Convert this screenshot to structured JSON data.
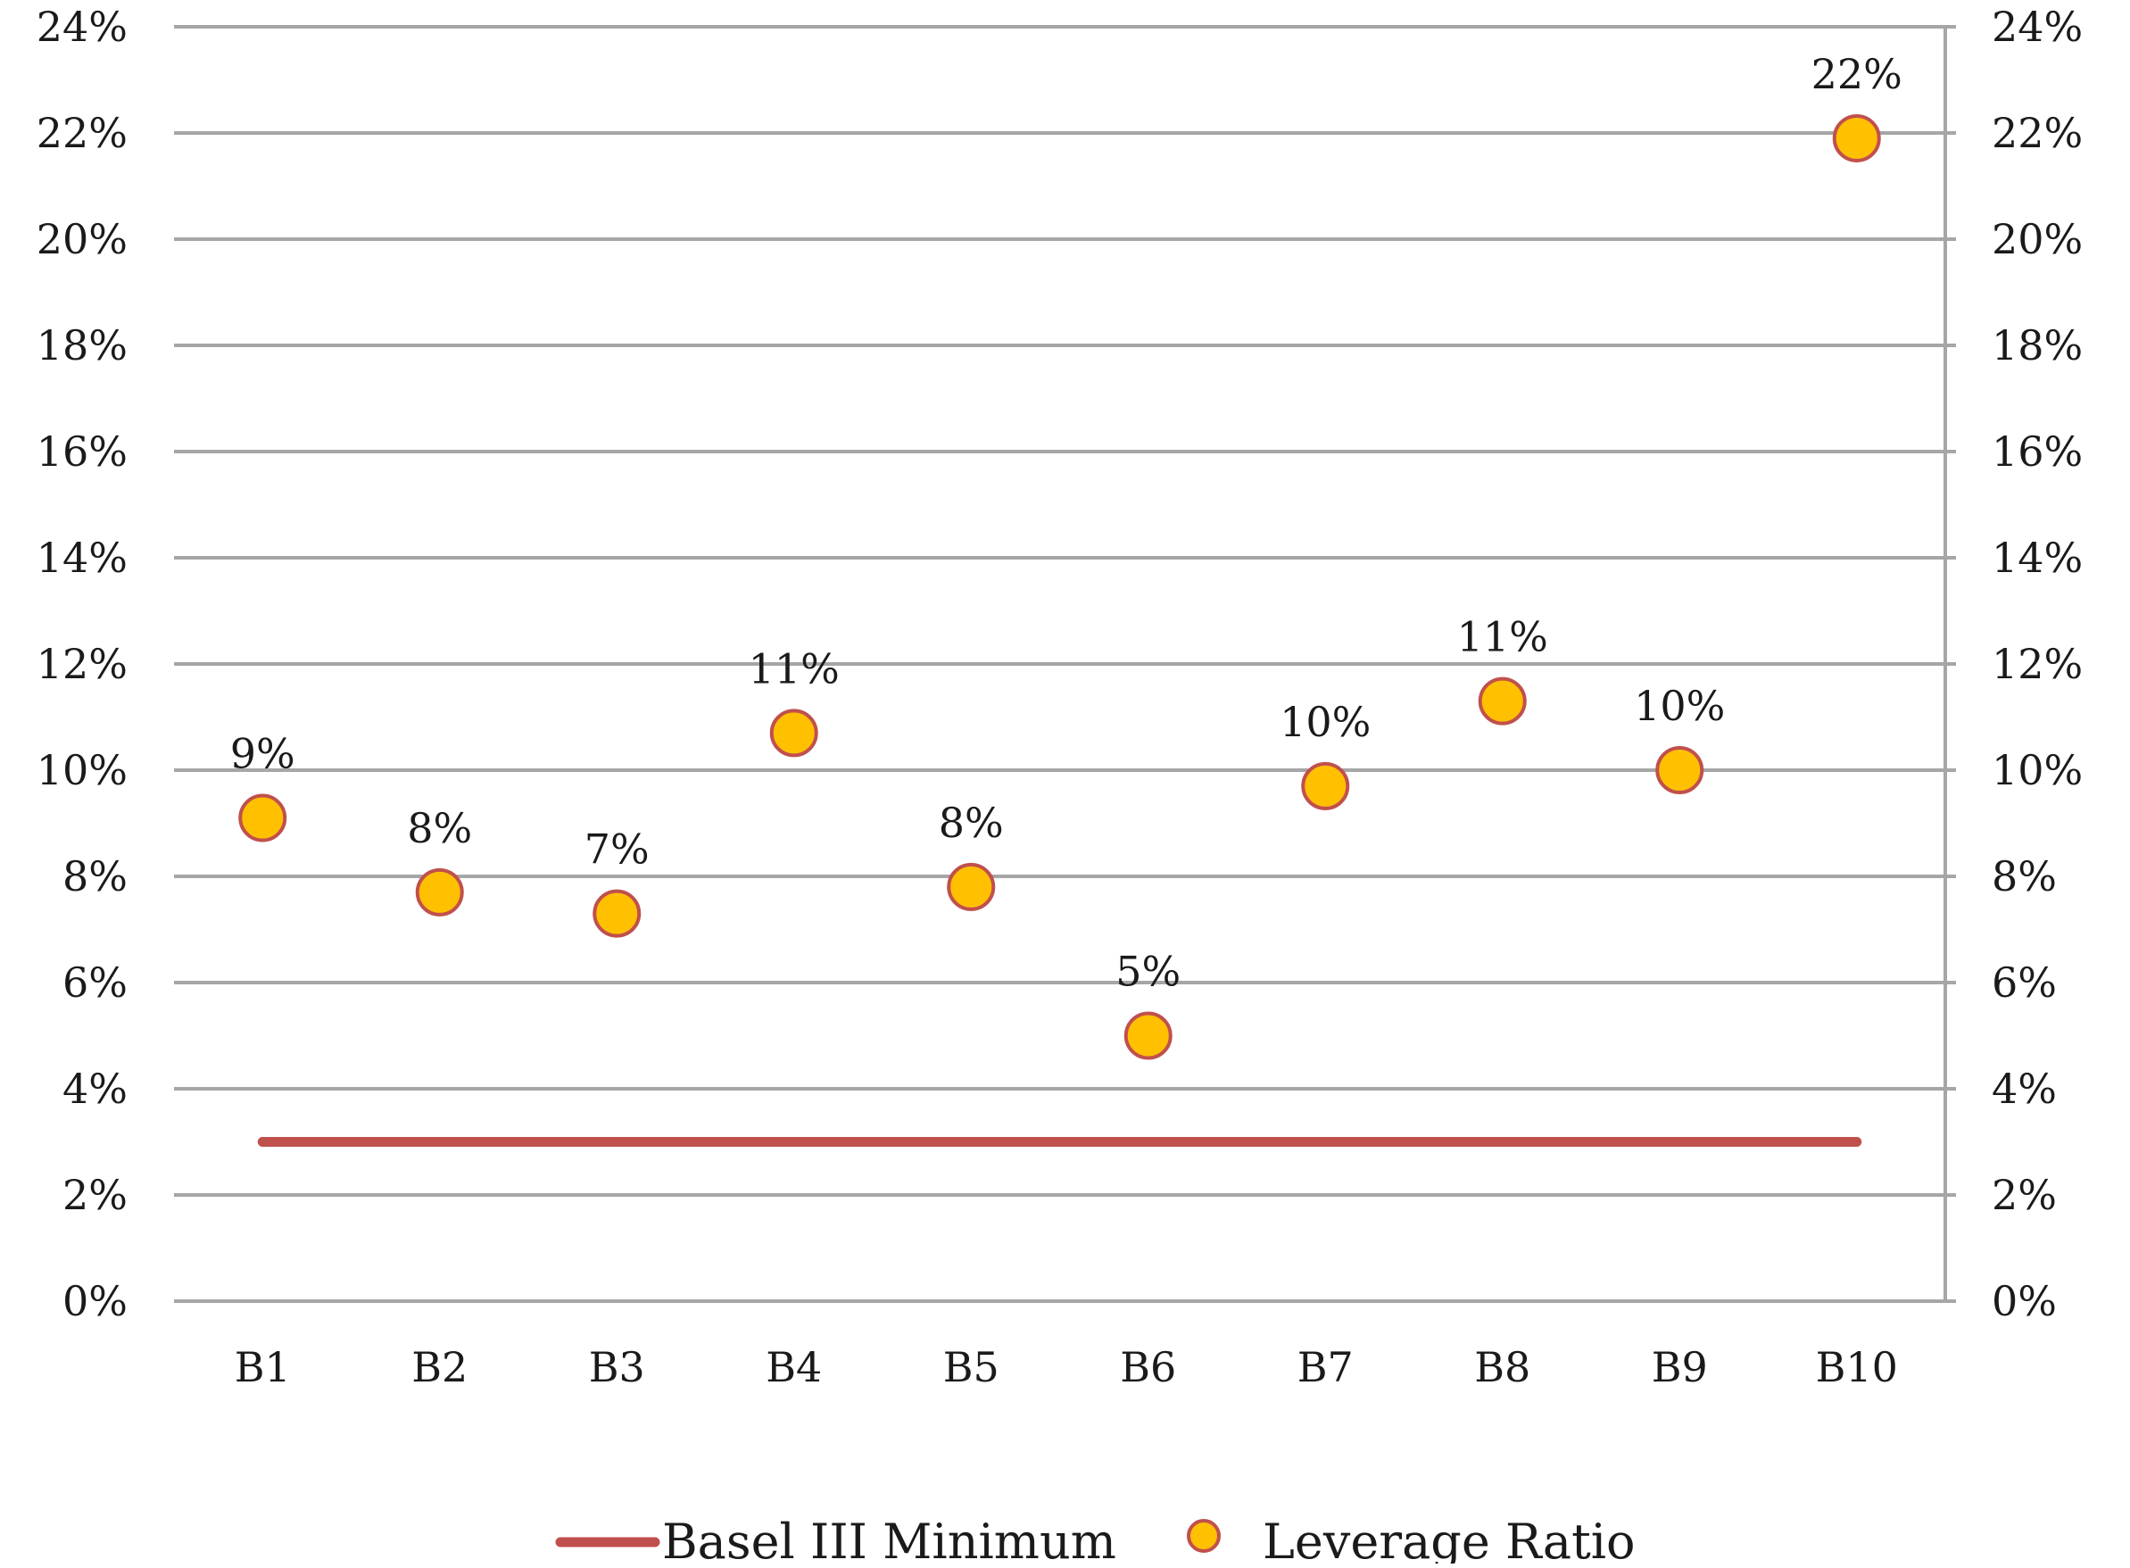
{
  "chart_data": {
    "type": "line+scatter",
    "categories": [
      "B1",
      "B2",
      "B3",
      "B4",
      "B5",
      "B6",
      "B7",
      "B8",
      "B9",
      "B10"
    ],
    "series": [
      {
        "name": "Basel III Minimum",
        "kind": "line",
        "color": "#c0504d",
        "values": [
          3,
          3,
          3,
          3,
          3,
          3,
          3,
          3,
          3,
          3
        ]
      },
      {
        "name": "Leverage Ratio",
        "kind": "scatter",
        "color": "#ffc000",
        "edge_color": "#c0504d",
        "values": [
          9.1,
          7.7,
          7.3,
          10.7,
          7.8,
          5.0,
          9.7,
          11.3,
          10.0,
          21.9
        ],
        "data_labels": [
          "9%",
          "8%",
          "7%",
          "11%",
          "8%",
          "5%",
          "10%",
          "11%",
          "10%",
          "22%"
        ]
      }
    ],
    "y_axis": {
      "min": 0,
      "max": 24,
      "step": 2,
      "tick_labels": [
        "0%",
        "2%",
        "4%",
        "6%",
        "8%",
        "10%",
        "12%",
        "14%",
        "16%",
        "18%",
        "20%",
        "22%",
        "24%"
      ],
      "mirrored_right": true
    },
    "grid": true,
    "grid_color": "#a6a6a6",
    "legend_position": "bottom"
  }
}
